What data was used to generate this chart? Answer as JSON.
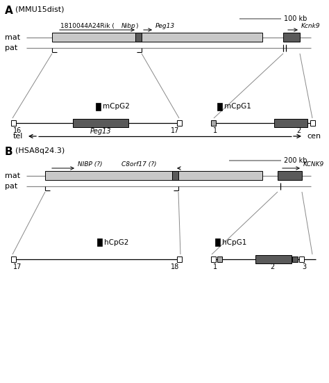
{
  "fig_width": 4.74,
  "fig_height": 5.51,
  "bg_color": "#ffffff",
  "panel_A_label": "A",
  "panel_A_subtitle": "(MMU15dist)",
  "panel_B_label": "B",
  "panel_B_subtitle": "(HSA8q24.3)",
  "scale_bar_A": "100 kb",
  "scale_bar_B": "200 kb",
  "tel_label": "tel",
  "cen_label": "cen",
  "light_gray": "#c8c8c8",
  "dark_gray": "#5a5a5a",
  "black": "#000000",
  "white": "#ffffff",
  "line_color": "#888888",
  "mat_label": "mat",
  "pat_label": "pat"
}
